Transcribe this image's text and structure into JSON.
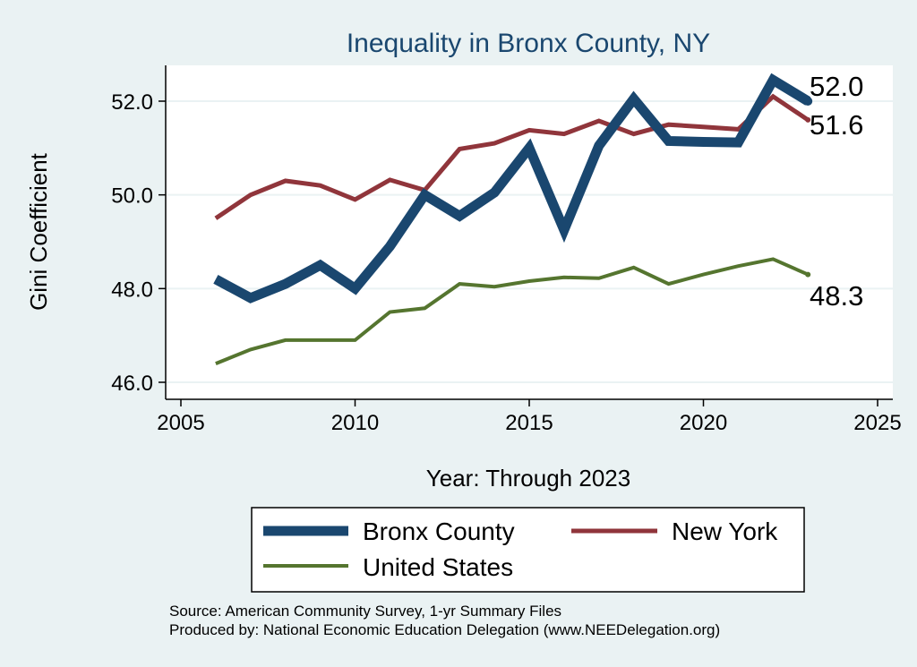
{
  "chart_data": {
    "type": "line",
    "title": "Inequality in Bronx County, NY",
    "xlabel": "Year: Through 2023",
    "ylabel": "Gini Coefficient",
    "xlim": [
      2005,
      2025
    ],
    "ylim": [
      45.8,
      52.8
    ],
    "xticks": [
      "2005",
      "2010",
      "2015",
      "2020",
      "2025"
    ],
    "yticks": [
      "46.0",
      "48.0",
      "50.0",
      "52.0"
    ],
    "x": [
      2006,
      2007,
      2008,
      2009,
      2010,
      2011,
      2012,
      2013,
      2014,
      2015,
      2016,
      2017,
      2018,
      2019,
      2020,
      2021,
      2022,
      2023
    ],
    "series": [
      {
        "name": "Bronx County",
        "color": "#1a476f",
        "values": [
          48.2,
          47.8,
          48.1,
          48.5,
          48.0,
          48.9,
          50.0,
          49.55,
          50.05,
          51.0,
          49.25,
          51.05,
          52.05,
          51.15,
          51.13,
          51.12,
          52.45,
          52.0
        ],
        "end_label": "52.0"
      },
      {
        "name": "New York",
        "color": "#90353b",
        "values": [
          49.5,
          50.0,
          50.3,
          50.2,
          49.9,
          50.32,
          50.1,
          50.98,
          51.1,
          51.38,
          51.3,
          51.58,
          51.3,
          51.5,
          51.45,
          51.4,
          52.1,
          51.6
        ],
        "end_label": "51.6"
      },
      {
        "name": "United States",
        "color": "#55752f",
        "values": [
          46.4,
          46.7,
          46.9,
          46.9,
          46.9,
          47.5,
          47.58,
          48.1,
          48.04,
          48.16,
          48.24,
          48.22,
          48.45,
          48.1,
          48.3,
          48.48,
          48.63,
          48.3
        ],
        "end_label": "48.3"
      }
    ],
    "legend": {
      "position": "bottom",
      "entries": [
        "Bronx County",
        "New York",
        "United States"
      ]
    },
    "notes": [
      "Source: American Community Survey, 1-yr Summary Files",
      "Produced by: National Economic Education Delegation (www.NEEDelegation.org)"
    ]
  }
}
